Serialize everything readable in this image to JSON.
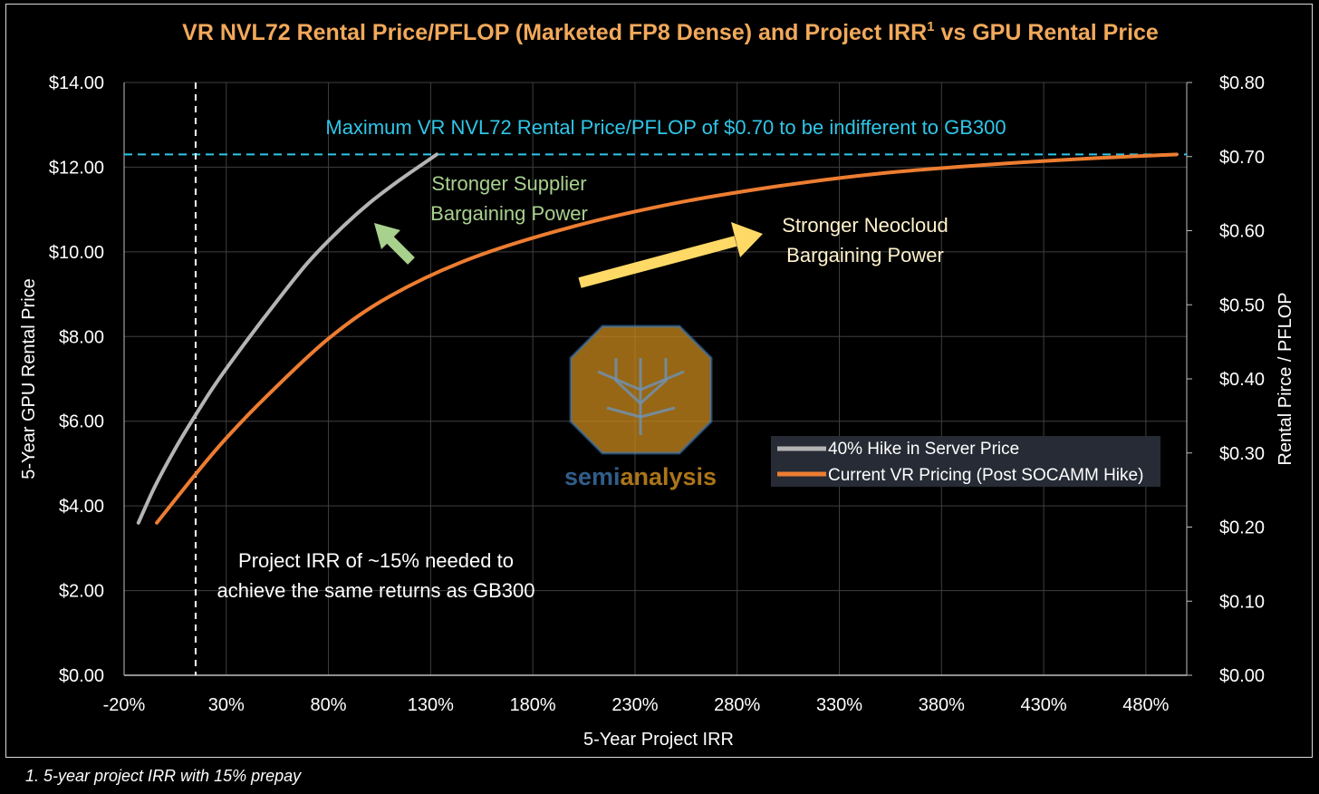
{
  "chart_data": {
    "type": "line",
    "title": "VR NVL72 Rental Price/PFLOP (Marketed FP8 Dense) and Project IRR",
    "title_superscript": "1",
    "title_suffix": " vs GPU Rental Price",
    "xlabel": "5-Year Project IRR",
    "ylabel": "5-Year GPU Rental Price",
    "y2label": "Rental Pirce / PFLOP",
    "xlim": [
      -20,
      500
    ],
    "ylim": [
      0,
      14
    ],
    "y2lim": [
      0,
      0.8
    ],
    "x_ticks": [
      -20,
      30,
      80,
      130,
      180,
      230,
      280,
      330,
      380,
      430,
      480
    ],
    "x_tick_labels": [
      "-20%",
      "30%",
      "80%",
      "130%",
      "180%",
      "230%",
      "280%",
      "330%",
      "380%",
      "430%",
      "480%"
    ],
    "y_ticks": [
      0,
      2,
      4,
      6,
      8,
      10,
      12,
      14
    ],
    "y_tick_labels": [
      "$0.00",
      "$2.00",
      "$4.00",
      "$6.00",
      "$8.00",
      "$10.00",
      "$12.00",
      "$14.00"
    ],
    "y2_ticks": [
      0,
      0.1,
      0.2,
      0.3,
      0.4,
      0.5,
      0.6,
      0.7,
      0.8
    ],
    "y2_tick_labels": [
      "$0.00",
      "$0.10",
      "$0.20",
      "$0.30",
      "$0.40",
      "$0.50",
      "$0.60",
      "$0.70",
      "$0.80"
    ],
    "grid": true,
    "legend_position": "center-right",
    "series": [
      {
        "name": "40% Hike in Server Price",
        "color": "#b4b4b4",
        "x": [
          -13,
          -5,
          5,
          15,
          25,
          40,
          55,
          70,
          85,
          100,
          115,
          133
        ],
        "y": [
          3.6,
          4.45,
          5.35,
          6.15,
          6.9,
          7.9,
          8.85,
          9.75,
          10.5,
          11.15,
          11.7,
          12.3
        ]
      },
      {
        "name": "Current VR Pricing (Post SOCAMM Hike)",
        "color": "#ed7d31",
        "x": [
          -4,
          15,
          30,
          50,
          80,
          110,
          150,
          200,
          250,
          300,
          350,
          400,
          450,
          495
        ],
        "y": [
          3.6,
          4.75,
          5.6,
          6.6,
          7.95,
          8.95,
          9.85,
          10.6,
          11.15,
          11.55,
          11.85,
          12.05,
          12.2,
          12.3
        ]
      }
    ],
    "reference_lines": {
      "horizontal_y": 12.3,
      "horizontal_color": "#2fc6e8",
      "vertical_x": 15,
      "vertical_color": "#ffffff"
    },
    "annotations": {
      "max_price": "Maximum VR NVL72 Rental Price/PFLOP of $0.70 to be indifferent to GB300",
      "max_price_color": "#2fc6e8",
      "supplier_line1": "Stronger Supplier",
      "supplier_line2": "Bargaining Power",
      "supplier_color": "#a9d18e",
      "neocloud_line1": "Stronger Neocloud",
      "neocloud_line2": "Bargaining Power",
      "neocloud_color": "#fff2cc",
      "irr_line1": "Project IRR of ~15% needed to",
      "irr_line2": "achieve the same returns as GB300",
      "irr_color": "#ffffff",
      "green_arrow_color": "#a9d18e",
      "yellow_arrow_color": "#ffd966"
    },
    "watermark": {
      "text_a": "semi",
      "text_b": "analysis"
    }
  },
  "footnote": "1. 5-year project IRR with 15% prepay"
}
